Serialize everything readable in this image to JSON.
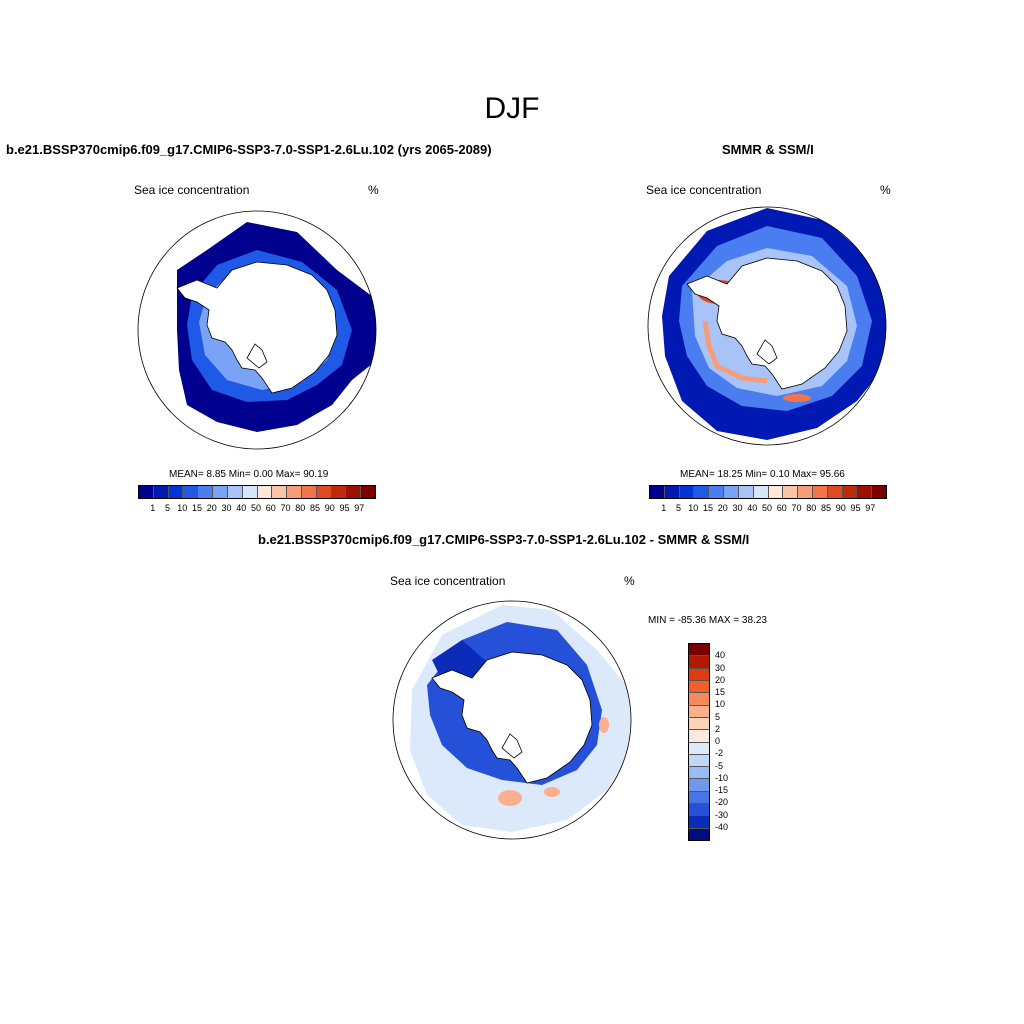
{
  "title": "DJF",
  "panels": {
    "model": {
      "subtitle": "b.e21.BSSP370cmip6.f09_g17.CMIP6-SSP3-7.0-SSP1-2.6Lu.102 (yrs 2065-2089)",
      "variable": "Sea ice concentration",
      "units": "%",
      "stats": "MEAN=   8.85  Min=   0.00  Max=  90.19"
    },
    "obs": {
      "subtitle": "SMMR & SSM/I",
      "variable": "Sea ice concentration",
      "units": "%",
      "stats": "MEAN=  18.25  Min=   0.10  Max=  95.66"
    },
    "diff": {
      "subtitle": "b.e21.BSSP370cmip6.f09_g17.CMIP6-SSP3-7.0-SSP1-2.6Lu.102 - SMMR & SSM/I",
      "variable": "Sea ice concentration",
      "units": "%",
      "minmax": "MIN = -85.36 MAX =  38.23"
    }
  },
  "colorbar_abs": {
    "labels": [
      "1",
      "5",
      "10",
      "15",
      "20",
      "30",
      "40",
      "50",
      "60",
      "70",
      "80",
      "85",
      "90",
      "95",
      "97"
    ],
    "colors": [
      "#00008f",
      "#0019b3",
      "#0034d6",
      "#1f5ae6",
      "#4a7ef0",
      "#7aa3f5",
      "#a7c3f8",
      "#d6e6fb",
      "#fde8d9",
      "#fbc4a8",
      "#f79c78",
      "#f2744b",
      "#e04a20",
      "#c02a0a",
      "#a01000",
      "#7a0000"
    ]
  },
  "colorbar_diff": {
    "labels": [
      "40",
      "30",
      "20",
      "15",
      "10",
      "5",
      "2",
      "0",
      "-2",
      "-5",
      "-10",
      "-15",
      "-20",
      "-30",
      "-40"
    ],
    "colors": [
      "#7a0000",
      "#b01a00",
      "#e03a10",
      "#f2602a",
      "#f78a5a",
      "#fab08c",
      "#fcd2b8",
      "#fdeade",
      "#dce9fb",
      "#c1d6f8",
      "#9cbbf4",
      "#7298ee",
      "#4a74e6",
      "#2550d8",
      "#0a2cb8",
      "#000d80"
    ]
  },
  "chart_data": [
    {
      "type": "heatmap",
      "title": "b.e21.BSSP370cmip6.f09_g17.CMIP6-SSP3-7.0-SSP1-2.6Lu.102 (yrs 2065-2089)",
      "variable": "Sea ice concentration",
      "units": "%",
      "projection": "south polar stereographic",
      "mean": 8.85,
      "min": 0.0,
      "max": 90.19
    },
    {
      "type": "heatmap",
      "title": "SMMR & SSM/I",
      "variable": "Sea ice concentration",
      "units": "%",
      "projection": "south polar stereographic",
      "mean": 18.25,
      "min": 0.1,
      "max": 95.66
    },
    {
      "type": "heatmap",
      "title": "b.e21.BSSP370cmip6.f09_g17.CMIP6-SSP3-7.0-SSP1-2.6Lu.102 - SMMR & SSM/I",
      "variable": "Sea ice concentration",
      "units": "%",
      "projection": "south polar stereographic",
      "min": -85.36,
      "max": 38.23
    }
  ]
}
